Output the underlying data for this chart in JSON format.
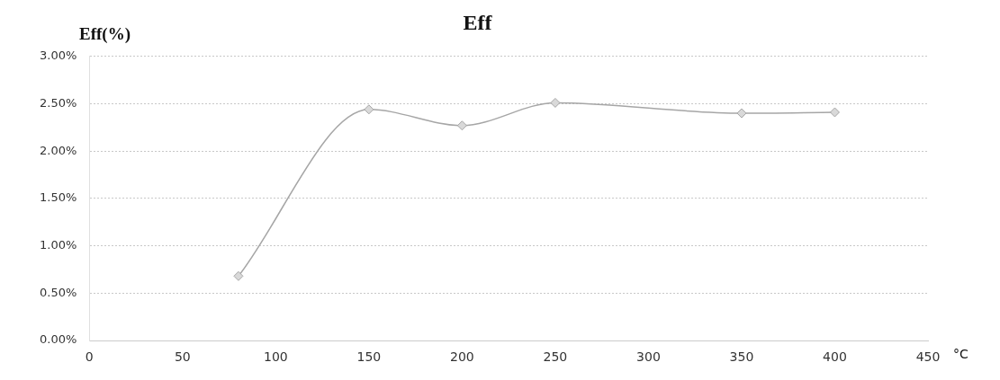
{
  "chart_data": {
    "type": "line",
    "title": "Eff",
    "ylabel": "Eff(%)",
    "xlabel": "°C",
    "x": [
      80,
      150,
      200,
      250,
      350,
      400
    ],
    "series": [
      {
        "color": "#a6a6a6",
        "values": [
          0.68,
          2.44,
          2.27,
          2.51,
          2.4,
          2.41
        ]
      }
    ],
    "xlim": [
      0,
      450
    ],
    "xticks": [
      0,
      50,
      100,
      150,
      200,
      250,
      300,
      350,
      400,
      450
    ],
    "ylim": [
      0,
      3
    ],
    "yticks": [
      {
        "value": 0,
        "label": "0.00%"
      },
      {
        "value": 0.5,
        "label": "0.50%"
      },
      {
        "value": 1,
        "label": "1.00%"
      },
      {
        "value": 1.5,
        "label": "1.50%"
      },
      {
        "value": 2,
        "label": "2.00%"
      },
      {
        "value": 2.5,
        "label": "2.50%"
      },
      {
        "value": 3,
        "label": "3.00%"
      }
    ],
    "grid": "y",
    "legend": false,
    "marker": "diamond",
    "line_style": "solid"
  }
}
